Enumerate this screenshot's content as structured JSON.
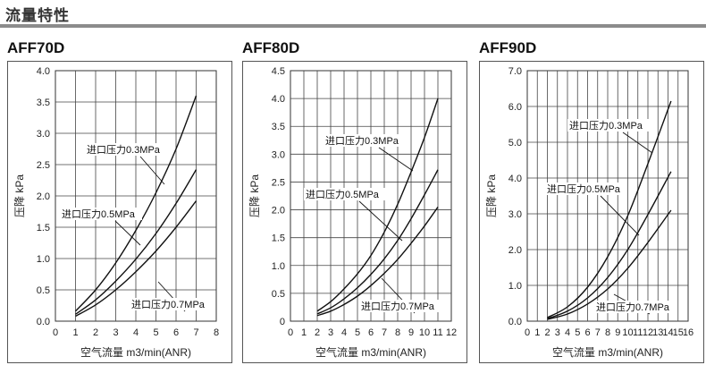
{
  "page": {
    "title": "流量特性"
  },
  "chart_data": [
    {
      "type": "line",
      "title": "AFF70D",
      "xlabel": "空气流量 m3/min(ANR)",
      "ylabel": "压降 kPa",
      "xlim": [
        0,
        8
      ],
      "ylim": [
        0,
        4.0
      ],
      "xticks": [
        "0",
        "1",
        "2",
        "3",
        "4",
        "5",
        "6",
        "7",
        "8"
      ],
      "yticks": [
        "0.0",
        "0.5",
        "1.0",
        "1.5",
        "2.0",
        "2.5",
        "3.0",
        "3.5",
        "4.0"
      ],
      "series": [
        {
          "name": "进口压力0.3MPa",
          "x": [
            1,
            2,
            3,
            4,
            5,
            6,
            7
          ],
          "values": [
            0.16,
            0.5,
            0.93,
            1.45,
            2.05,
            2.75,
            3.6
          ]
        },
        {
          "name": "进口压力0.5MPa",
          "x": [
            1,
            2,
            3,
            4,
            5,
            6,
            7
          ],
          "values": [
            0.11,
            0.34,
            0.64,
            0.99,
            1.4,
            1.88,
            2.42
          ]
        },
        {
          "name": "进口压力0.7MPa",
          "x": [
            1,
            2,
            3,
            4,
            5,
            6,
            7
          ],
          "values": [
            0.08,
            0.26,
            0.5,
            0.79,
            1.12,
            1.5,
            1.92
          ]
        }
      ]
    },
    {
      "type": "line",
      "title": "AFF80D",
      "xlabel": "空气流量 m3/min(ANR)",
      "ylabel": "压降 kPa",
      "xlim": [
        0,
        12
      ],
      "ylim": [
        0,
        4.5
      ],
      "xticks": [
        "0",
        "1",
        "2",
        "3",
        "4",
        "5",
        "6",
        "7",
        "8",
        "9",
        "10",
        "11",
        "12"
      ],
      "yticks": [
        "0",
        "0.5",
        "1.0",
        "1.5",
        "2.0",
        "2.5",
        "3.0",
        "3.5",
        "4.0",
        "4.5"
      ],
      "series": [
        {
          "name": "进口压力0.3MPa",
          "x": [
            2,
            3,
            4,
            5,
            6,
            7,
            8,
            9,
            10,
            11
          ],
          "values": [
            0.18,
            0.35,
            0.58,
            0.85,
            1.18,
            1.6,
            2.1,
            2.68,
            3.3,
            4.0
          ]
        },
        {
          "name": "进口压力0.5MPa",
          "x": [
            2,
            3,
            4,
            5,
            6,
            7,
            8,
            9,
            10,
            11
          ],
          "values": [
            0.13,
            0.24,
            0.4,
            0.6,
            0.84,
            1.12,
            1.45,
            1.84,
            2.27,
            2.72
          ]
        },
        {
          "name": "进口压力0.7MPa",
          "x": [
            2,
            3,
            4,
            5,
            6,
            7,
            8,
            9,
            10,
            11
          ],
          "values": [
            0.1,
            0.18,
            0.3,
            0.45,
            0.64,
            0.86,
            1.11,
            1.4,
            1.71,
            2.05
          ]
        }
      ]
    },
    {
      "type": "line",
      "title": "AFF90D",
      "xlabel": "空气流量 m3/min(ANR)",
      "ylabel": "压降 kPa",
      "xlim": [
        0,
        16
      ],
      "ylim": [
        0,
        7.0
      ],
      "xticks": [
        "0",
        "1",
        "2",
        "3",
        "4",
        "5",
        "6",
        "7",
        "8",
        "9",
        "10",
        "11",
        "12",
        "13",
        "14",
        "15",
        "16"
      ],
      "yticks": [
        "0.0",
        "1.0",
        "2.0",
        "3.0",
        "4.0",
        "5.0",
        "6.0",
        "7.0"
      ],
      "series": [
        {
          "name": "进口压力0.3MPa",
          "x": [
            2,
            4,
            6,
            8,
            10,
            12,
            14.3
          ],
          "values": [
            0.1,
            0.4,
            0.95,
            1.8,
            2.95,
            4.4,
            6.15
          ]
        },
        {
          "name": "进口压力0.5MPa",
          "x": [
            2,
            4,
            6,
            8,
            10,
            12,
            14.3
          ],
          "values": [
            0.07,
            0.28,
            0.65,
            1.22,
            2.0,
            2.98,
            4.18
          ]
        },
        {
          "name": "进口压力0.7MPa",
          "x": [
            2,
            4,
            6,
            8,
            10,
            12,
            14.3
          ],
          "values": [
            0.05,
            0.2,
            0.48,
            0.9,
            1.48,
            2.2,
            3.1
          ]
        }
      ]
    }
  ]
}
